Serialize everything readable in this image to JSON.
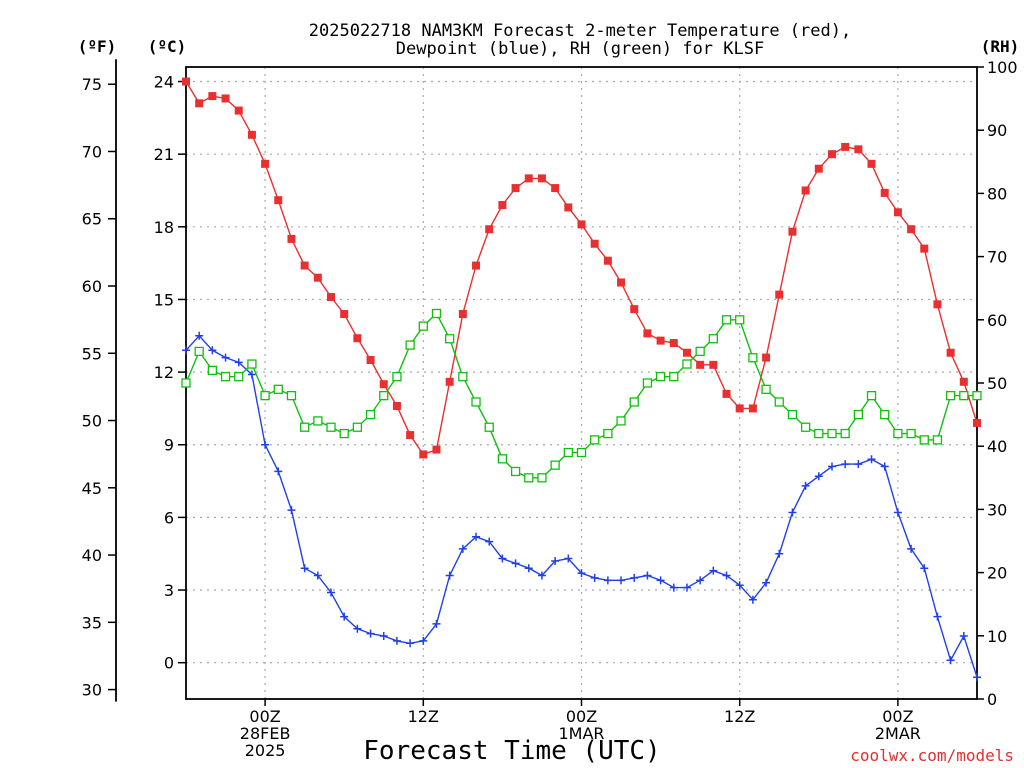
{
  "header": {
    "title_line1": "2025022718 NAM3KM Forecast 2-meter Temperature (red),",
    "title_line2": "Dewpoint (blue), RH (green) for KLSF",
    "unit_f": "(ºF)",
    "unit_c": "(ºC)",
    "unit_rh": "(RH)"
  },
  "footer": {
    "xlabel": "Forecast Time (UTC)",
    "credit": "coolwx.com/models",
    "credit_color": "#e03030"
  },
  "colors": {
    "temperature": "#e83030",
    "dewpoint": "#2040e8",
    "rh": "#10c010",
    "grid": "#aaaaaa"
  },
  "chart_data": {
    "type": "line",
    "x_unit": "forecast hour from 2025-02-27 18Z",
    "x": [
      0,
      1,
      2,
      3,
      4,
      5,
      6,
      7,
      8,
      9,
      10,
      11,
      12,
      13,
      14,
      15,
      16,
      17,
      18,
      19,
      20,
      21,
      22,
      23,
      24,
      25,
      26,
      27,
      28,
      29,
      30,
      31,
      32,
      33,
      34,
      35,
      36,
      37,
      38,
      39,
      40,
      41,
      42,
      43,
      44,
      45,
      46,
      47,
      48,
      49,
      50,
      51,
      52,
      53,
      54,
      55,
      56,
      57,
      58,
      59,
      60
    ],
    "xlim": [
      0,
      60
    ],
    "x_ticks": [
      {
        "x": 6,
        "lines": [
          "00Z",
          "28FEB",
          "2025"
        ]
      },
      {
        "x": 18,
        "lines": [
          "12Z"
        ]
      },
      {
        "x": 30,
        "lines": [
          "00Z",
          "1MAR"
        ]
      },
      {
        "x": 42,
        "lines": [
          "12Z"
        ]
      },
      {
        "x": 54,
        "lines": [
          "00Z",
          "2MAR"
        ]
      }
    ],
    "left_axis_c": {
      "ylim": [
        -1.5,
        24.6
      ],
      "ticks": [
        0,
        3,
        6,
        9,
        12,
        15,
        18,
        21,
        24
      ]
    },
    "left_axis_f": {
      "ticks": [
        30,
        35,
        40,
        45,
        50,
        55,
        60,
        65,
        70,
        75
      ]
    },
    "right_axis_rh": {
      "ylim": [
        0,
        100
      ],
      "ticks": [
        0,
        10,
        20,
        30,
        40,
        50,
        60,
        70,
        80,
        90,
        100
      ]
    },
    "grid": true,
    "series": [
      {
        "name": "Temperature (red)",
        "axis": "celsius",
        "marker": "filled-square",
        "values": [
          24.0,
          23.1,
          23.4,
          23.3,
          22.8,
          21.8,
          20.6,
          19.1,
          17.5,
          16.4,
          15.9,
          15.1,
          14.4,
          13.4,
          12.5,
          11.5,
          10.6,
          9.4,
          8.6,
          8.8,
          11.6,
          14.4,
          16.4,
          17.9,
          18.9,
          19.6,
          20.0,
          20.0,
          19.6,
          18.8,
          18.1,
          17.3,
          16.6,
          15.7,
          14.6,
          13.6,
          13.3,
          13.2,
          12.8,
          12.3,
          12.3,
          11.1,
          10.5,
          10.5,
          12.6,
          15.2,
          17.8,
          19.5,
          20.4,
          21.0,
          21.3,
          21.2,
          20.6,
          19.4,
          18.6,
          17.9,
          17.1,
          14.8,
          12.8,
          11.6,
          9.9
        ]
      },
      {
        "name": "Dewpoint (blue)",
        "axis": "celsius",
        "marker": "plus",
        "values": [
          12.9,
          13.5,
          12.9,
          12.6,
          12.4,
          11.9,
          9.0,
          7.9,
          6.3,
          3.9,
          3.6,
          2.9,
          1.9,
          1.4,
          1.2,
          1.1,
          0.9,
          0.8,
          0.9,
          1.6,
          3.6,
          4.7,
          5.2,
          5.0,
          4.3,
          4.1,
          3.9,
          3.6,
          4.2,
          4.3,
          3.7,
          3.5,
          3.4,
          3.4,
          3.5,
          3.6,
          3.4,
          3.1,
          3.1,
          3.4,
          3.8,
          3.6,
          3.2,
          2.6,
          3.3,
          4.5,
          6.2,
          7.3,
          7.7,
          8.1,
          8.2,
          8.2,
          8.4,
          8.1,
          6.2,
          4.7,
          3.9,
          1.9,
          0.1,
          1.1,
          -0.6
        ]
      },
      {
        "name": "RH (green)",
        "axis": "rh",
        "marker": "open-square",
        "values": [
          50,
          55,
          52,
          51,
          51,
          53,
          48,
          49,
          48,
          43,
          44,
          43,
          42,
          43,
          45,
          48,
          51,
          56,
          59,
          61,
          57,
          51,
          47,
          43,
          38,
          36,
          35,
          35,
          37,
          39,
          39,
          41,
          42,
          44,
          47,
          50,
          51,
          51,
          53,
          55,
          57,
          60,
          60,
          54,
          49,
          47,
          45,
          43,
          42,
          42,
          42,
          45,
          48,
          45,
          42,
          42,
          41,
          41,
          48,
          48,
          48
        ]
      }
    ]
  }
}
